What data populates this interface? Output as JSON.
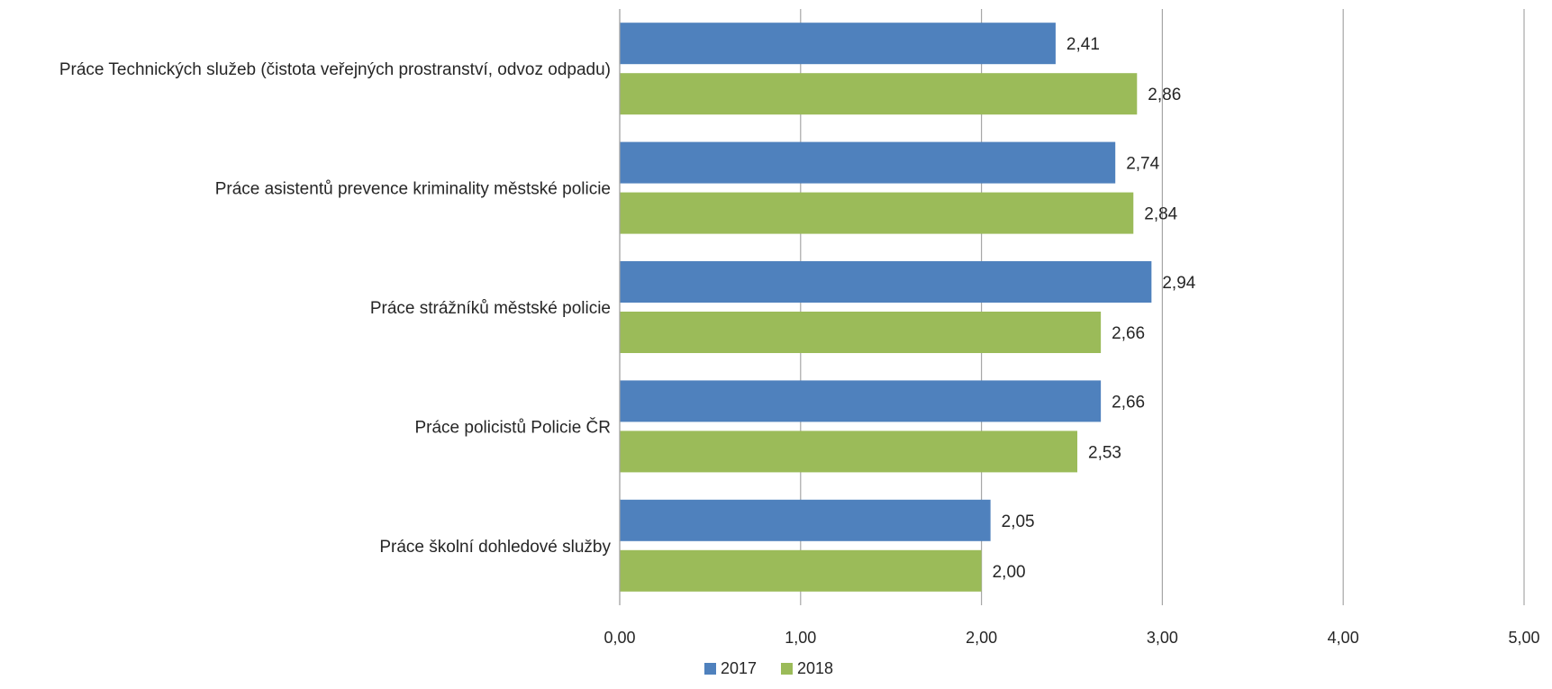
{
  "chart_data": {
    "type": "bar",
    "orientation": "horizontal",
    "categories": [
      "Práce Technických služeb (čistota veřejných prostranství, odvoz odpadu)",
      "Práce asistentů prevence kriminality městské policie",
      "Práce strážníků městské policie",
      "Práce policistů Policie ČR",
      "Práce školní dohledové služby"
    ],
    "series": [
      {
        "name": "2017",
        "color": "#4f81bd",
        "values": [
          2.41,
          2.74,
          2.94,
          2.66,
          2.05
        ],
        "labels": [
          "2,41",
          "2,74",
          "2,94",
          "2,66",
          "2,05"
        ]
      },
      {
        "name": "2018",
        "color": "#9bbb59",
        "values": [
          2.86,
          2.84,
          2.66,
          2.53,
          2.0
        ],
        "labels": [
          "2,86",
          "2,84",
          "2,66",
          "2,53",
          "2,00"
        ]
      }
    ],
    "xlim": [
      0,
      5
    ],
    "xticks": [
      0,
      1,
      2,
      3,
      4,
      5
    ],
    "xtick_labels": [
      "0,00",
      "1,00",
      "2,00",
      "3,00",
      "4,00",
      "5,00"
    ],
    "grid": true,
    "gridline_color": "#a6a6a6",
    "legend_position": "bottom",
    "title": "",
    "xlabel": "",
    "ylabel": ""
  }
}
